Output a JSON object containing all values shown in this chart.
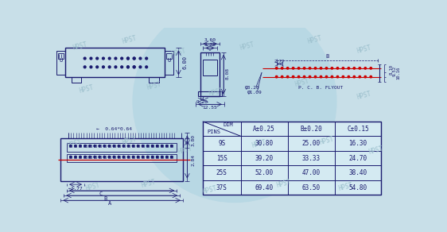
{
  "bg_color": "#c8dfe8",
  "line_color": "#1a1a6e",
  "red_color": "#cc0000",
  "watermark": "HPST",
  "table": {
    "rows": [
      [
        "9S",
        "30.80",
        "25.00",
        "16.30"
      ],
      [
        "15S",
        "39.20",
        "33.33",
        "24.70"
      ],
      [
        "25S",
        "52.00",
        "47.00",
        "38.40"
      ],
      [
        "37S",
        "69.40",
        "63.50",
        "54.80"
      ]
    ]
  }
}
